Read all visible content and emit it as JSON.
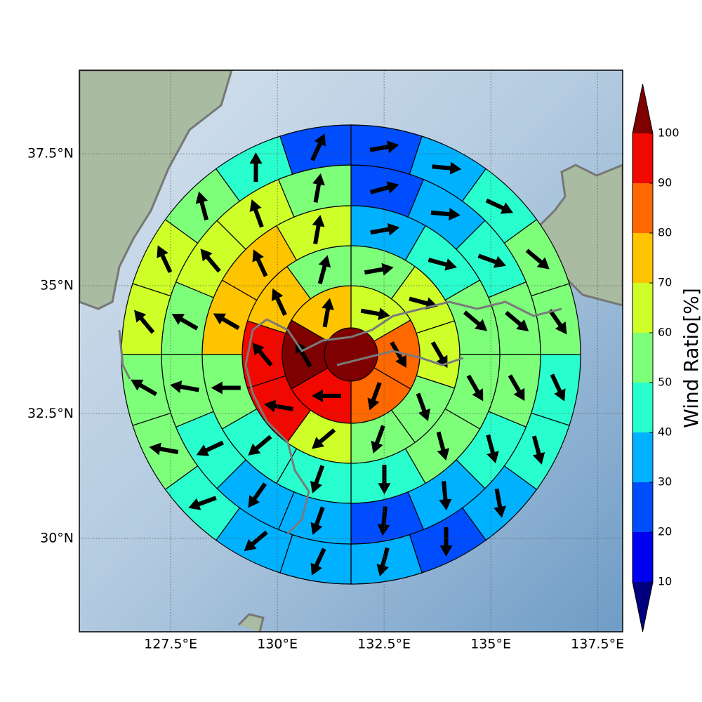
{
  "chart_data": {
    "type": "polarmap",
    "projection": "mercator",
    "xlim": [
      125.36,
      138.09
    ],
    "ylim": [
      28.08,
      39.04
    ],
    "xticks": [
      {
        "value": 127.5,
        "label": "127.5°E"
      },
      {
        "value": 130,
        "label": "130°E"
      },
      {
        "value": 132.5,
        "label": "132.5°E"
      },
      {
        "value": 135,
        "label": "135°E"
      },
      {
        "value": 137.5,
        "label": "137.5°E"
      }
    ],
    "yticks": [
      {
        "value": 30,
        "label": "30°N"
      },
      {
        "value": 32.5,
        "label": "32.5°N"
      },
      {
        "value": 35,
        "label": "35°N"
      },
      {
        "value": 37.5,
        "label": "37.5°N"
      }
    ],
    "grid": true,
    "rings": [
      {
        "values": [
          100
        ]
      },
      {
        "values": [
          65,
          85,
          85,
          95,
          100,
          75
        ],
        "directions": [
          100,
          150,
          200,
          270,
          330,
          10
        ]
      },
      {
        "values": [
          55,
          62,
          65,
          55,
          55,
          65,
          95,
          95,
          75,
          55
        ],
        "directions": [
          80,
          105,
          150,
          160,
          200,
          230,
          280,
          320,
          335,
          15
        ]
      },
      {
        "values": [
          35,
          45,
          55,
          55,
          55,
          45,
          45,
          45,
          55,
          75,
          75,
          65
        ],
        "directions": [
          80,
          105,
          130,
          150,
          165,
          180,
          200,
          230,
          270,
          300,
          335,
          10
        ]
      },
      {
        "values": [
          25,
          35,
          45,
          55,
          55,
          45,
          35,
          25,
          35,
          35,
          45,
          55,
          55,
          65,
          65,
          55
        ],
        "directions": [
          75,
          95,
          110,
          130,
          150,
          165,
          175,
          185,
          200,
          215,
          245,
          280,
          300,
          320,
          340,
          10
        ]
      },
      {
        "values": [
          25,
          35,
          45,
          55,
          55,
          45,
          45,
          35,
          25,
          35,
          35,
          35,
          45,
          55,
          55,
          65,
          65,
          55,
          45,
          25
        ],
        "directions": [
          80,
          95,
          115,
          130,
          145,
          155,
          165,
          170,
          180,
          195,
          205,
          230,
          250,
          280,
          300,
          320,
          335,
          345,
          0,
          25
        ]
      }
    ],
    "colorbar": {
      "label": "Wind Ratio[%]",
      "ticks": [
        10,
        20,
        30,
        40,
        50,
        60,
        70,
        80,
        90,
        100
      ],
      "colors": [
        "#00007f",
        "#0000f1",
        "#004dff",
        "#00b1ff",
        "#29ffce",
        "#7dff7a",
        "#ceff29",
        "#ffc400",
        "#ff6800",
        "#f10800",
        "#7f0000"
      ],
      "extend": "both"
    }
  }
}
